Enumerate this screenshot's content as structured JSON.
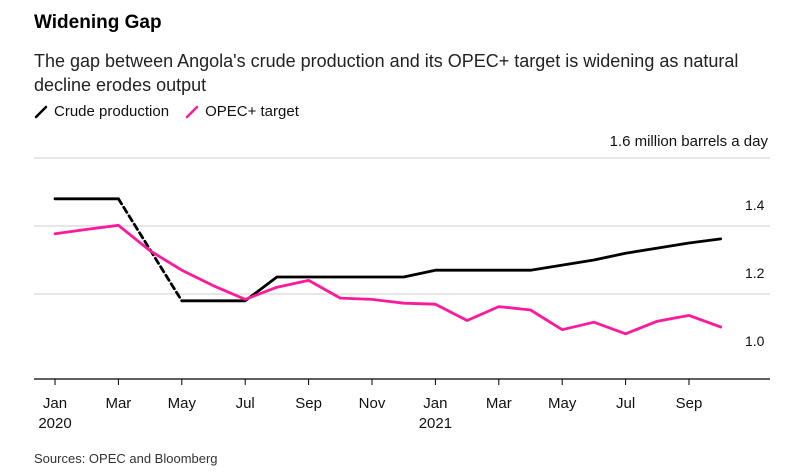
{
  "header": {
    "title": "Widening Gap",
    "subtitle": "The gap between Angola's crude production and its OPEC+ target is widening as natural decline erodes output"
  },
  "legend": {
    "items": [
      {
        "label": "Crude production",
        "color": "#000000"
      },
      {
        "label": "OPEC+ target",
        "color": "#ff1a9c"
      }
    ]
  },
  "unit_label": "1.6 million barrels a day",
  "source": "Sources: OPEC and Bloomberg",
  "chart_data": {
    "type": "line",
    "x_tick_labels": [
      "Jan",
      "Mar",
      "May",
      "Jul",
      "Sep",
      "Nov",
      "Jan",
      "Mar",
      "May",
      "Jul",
      "Sep"
    ],
    "x_tick_years": [
      "2020",
      "",
      "",
      "",
      "",
      "",
      "2021",
      "",
      "",
      "",
      ""
    ],
    "x": [
      "2020-01",
      "2020-02",
      "2020-03",
      "2020-04",
      "2020-05",
      "2020-06",
      "2020-07",
      "2020-08",
      "2020-09",
      "2020-10",
      "2020-11",
      "2020-12",
      "2021-01",
      "2021-02",
      "2021-03",
      "2021-04",
      "2021-05",
      "2021-06",
      "2021-07",
      "2021-08",
      "2021-09",
      "2021-10"
    ],
    "series": [
      {
        "name": "Crude production",
        "color": "#000000",
        "values": [
          1.48,
          1.48,
          1.48,
          1.33,
          1.18,
          1.18,
          1.18,
          1.25,
          1.25,
          1.25,
          1.25,
          1.25,
          1.27,
          1.27,
          1.27,
          1.27,
          1.285,
          1.3,
          1.32,
          1.335,
          1.35,
          1.362
        ],
        "dashed_between": [
          "2020-03",
          "2020-05"
        ]
      },
      {
        "name": "OPEC+ target",
        "color": "#ff1a9c",
        "values": [
          1.377,
          1.39,
          1.402,
          1.327,
          1.27,
          1.224,
          1.184,
          1.22,
          1.24,
          1.188,
          1.184,
          1.173,
          1.17,
          1.122,
          1.163,
          1.153,
          1.095,
          1.117,
          1.083,
          1.12,
          1.137,
          1.103
        ]
      }
    ],
    "y_ticks": [
      1.0,
      1.2,
      1.4
    ],
    "ylim": [
      0.95,
      1.6
    ],
    "grid": true,
    "legend_position": "top-left"
  }
}
